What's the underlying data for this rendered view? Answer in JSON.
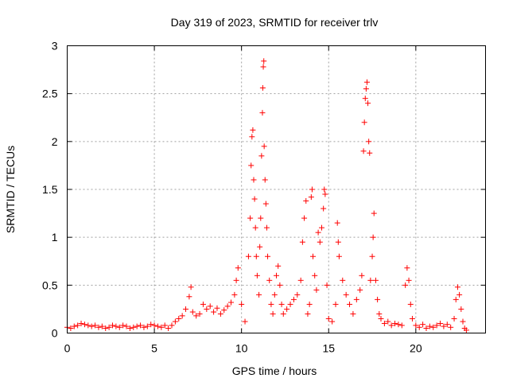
{
  "chart_data": {
    "type": "scatter",
    "title": "Day 319 of 2023, SRMTID for receiver trlv",
    "xlabel": "GPS time / hours",
    "ylabel": "SRMTID / TECUs",
    "xlim": [
      0,
      24
    ],
    "ylim": [
      0,
      3
    ],
    "xticks": [
      0,
      5,
      10,
      15,
      20
    ],
    "yticks": [
      0,
      0.5,
      1,
      1.5,
      2,
      2.5,
      3
    ],
    "grid": true,
    "marker": "+",
    "series": [
      {
        "name": "SRMTID",
        "color": "#ff0000",
        "points": [
          [
            0.0,
            0.06
          ],
          [
            0.2,
            0.05
          ],
          [
            0.4,
            0.07
          ],
          [
            0.6,
            0.08
          ],
          [
            0.8,
            0.1
          ],
          [
            1.0,
            0.09
          ],
          [
            1.2,
            0.08
          ],
          [
            1.4,
            0.07
          ],
          [
            1.6,
            0.08
          ],
          [
            1.8,
            0.06
          ],
          [
            2.0,
            0.07
          ],
          [
            2.2,
            0.05
          ],
          [
            2.4,
            0.06
          ],
          [
            2.6,
            0.08
          ],
          [
            2.8,
            0.07
          ],
          [
            3.0,
            0.06
          ],
          [
            3.2,
            0.08
          ],
          [
            3.4,
            0.07
          ],
          [
            3.6,
            0.05
          ],
          [
            3.8,
            0.06
          ],
          [
            4.0,
            0.07
          ],
          [
            4.2,
            0.08
          ],
          [
            4.4,
            0.06
          ],
          [
            4.6,
            0.07
          ],
          [
            4.8,
            0.09
          ],
          [
            5.0,
            0.08
          ],
          [
            5.2,
            0.07
          ],
          [
            5.4,
            0.06
          ],
          [
            5.6,
            0.08
          ],
          [
            5.8,
            0.05
          ],
          [
            6.0,
            0.08
          ],
          [
            6.2,
            0.12
          ],
          [
            6.4,
            0.15
          ],
          [
            6.6,
            0.18
          ],
          [
            6.8,
            0.25
          ],
          [
            7.0,
            0.38
          ],
          [
            7.1,
            0.48
          ],
          [
            7.2,
            0.22
          ],
          [
            7.4,
            0.18
          ],
          [
            7.6,
            0.2
          ],
          [
            7.8,
            0.3
          ],
          [
            8.0,
            0.25
          ],
          [
            8.2,
            0.28
          ],
          [
            8.4,
            0.22
          ],
          [
            8.6,
            0.26
          ],
          [
            8.8,
            0.2
          ],
          [
            9.0,
            0.24
          ],
          [
            9.2,
            0.28
          ],
          [
            9.4,
            0.32
          ],
          [
            9.6,
            0.4
          ],
          [
            9.7,
            0.55
          ],
          [
            9.8,
            0.68
          ],
          [
            10.0,
            0.3
          ],
          [
            10.2,
            0.12
          ],
          [
            10.4,
            0.8
          ],
          [
            10.5,
            1.2
          ],
          [
            10.55,
            1.75
          ],
          [
            10.6,
            2.05
          ],
          [
            10.65,
            2.12
          ],
          [
            10.7,
            1.6
          ],
          [
            10.75,
            1.4
          ],
          [
            10.8,
            1.1
          ],
          [
            10.85,
            0.8
          ],
          [
            10.9,
            0.6
          ],
          [
            11.0,
            0.4
          ],
          [
            11.05,
            0.9
          ],
          [
            11.1,
            1.2
          ],
          [
            11.15,
            1.85
          ],
          [
            11.2,
            2.3
          ],
          [
            11.22,
            2.56
          ],
          [
            11.25,
            2.78
          ],
          [
            11.28,
            2.84
          ],
          [
            11.3,
            1.95
          ],
          [
            11.35,
            1.6
          ],
          [
            11.4,
            1.35
          ],
          [
            11.45,
            1.1
          ],
          [
            11.5,
            0.8
          ],
          [
            11.6,
            0.55
          ],
          [
            11.7,
            0.3
          ],
          [
            11.8,
            0.2
          ],
          [
            11.9,
            0.4
          ],
          [
            12.0,
            0.6
          ],
          [
            12.1,
            0.7
          ],
          [
            12.2,
            0.5
          ],
          [
            12.3,
            0.3
          ],
          [
            12.4,
            0.2
          ],
          [
            12.6,
            0.25
          ],
          [
            12.8,
            0.3
          ],
          [
            13.0,
            0.35
          ],
          [
            13.2,
            0.4
          ],
          [
            13.4,
            0.55
          ],
          [
            13.5,
            0.95
          ],
          [
            13.6,
            1.2
          ],
          [
            13.7,
            1.38
          ],
          [
            13.8,
            0.2
          ],
          [
            13.9,
            0.3
          ],
          [
            14.0,
            1.42
          ],
          [
            14.05,
            1.5
          ],
          [
            14.1,
            0.8
          ],
          [
            14.2,
            0.6
          ],
          [
            14.3,
            0.45
          ],
          [
            14.4,
            1.05
          ],
          [
            14.5,
            0.95
          ],
          [
            14.6,
            1.1
          ],
          [
            14.7,
            1.3
          ],
          [
            14.75,
            1.5
          ],
          [
            14.8,
            1.45
          ],
          [
            14.9,
            0.5
          ],
          [
            15.0,
            0.15
          ],
          [
            15.2,
            0.12
          ],
          [
            15.4,
            0.3
          ],
          [
            15.5,
            1.15
          ],
          [
            15.55,
            0.95
          ],
          [
            15.6,
            0.8
          ],
          [
            15.8,
            0.55
          ],
          [
            16.0,
            0.4
          ],
          [
            16.2,
            0.3
          ],
          [
            16.4,
            0.2
          ],
          [
            16.6,
            0.35
          ],
          [
            16.8,
            0.45
          ],
          [
            16.9,
            0.6
          ],
          [
            17.0,
            1.9
          ],
          [
            17.05,
            2.2
          ],
          [
            17.1,
            2.45
          ],
          [
            17.15,
            2.55
          ],
          [
            17.2,
            2.62
          ],
          [
            17.25,
            2.4
          ],
          [
            17.3,
            2.0
          ],
          [
            17.35,
            1.88
          ],
          [
            17.4,
            0.55
          ],
          [
            17.5,
            0.8
          ],
          [
            17.55,
            1.0
          ],
          [
            17.6,
            1.25
          ],
          [
            17.7,
            0.55
          ],
          [
            17.8,
            0.35
          ],
          [
            17.9,
            0.2
          ],
          [
            18.0,
            0.15
          ],
          [
            18.2,
            0.1
          ],
          [
            18.4,
            0.12
          ],
          [
            18.6,
            0.08
          ],
          [
            18.8,
            0.1
          ],
          [
            19.0,
            0.09
          ],
          [
            19.2,
            0.08
          ],
          [
            19.4,
            0.5
          ],
          [
            19.5,
            0.68
          ],
          [
            19.6,
            0.55
          ],
          [
            19.7,
            0.3
          ],
          [
            19.8,
            0.15
          ],
          [
            20.0,
            0.08
          ],
          [
            20.2,
            0.06
          ],
          [
            20.4,
            0.09
          ],
          [
            20.6,
            0.05
          ],
          [
            20.8,
            0.07
          ],
          [
            21.0,
            0.06
          ],
          [
            21.2,
            0.08
          ],
          [
            21.4,
            0.1
          ],
          [
            21.6,
            0.07
          ],
          [
            21.8,
            0.09
          ],
          [
            22.0,
            0.06
          ],
          [
            22.2,
            0.15
          ],
          [
            22.3,
            0.35
          ],
          [
            22.4,
            0.48
          ],
          [
            22.5,
            0.4
          ],
          [
            22.6,
            0.25
          ],
          [
            22.7,
            0.12
          ],
          [
            22.8,
            0.05
          ],
          [
            22.9,
            0.03
          ]
        ]
      }
    ]
  }
}
